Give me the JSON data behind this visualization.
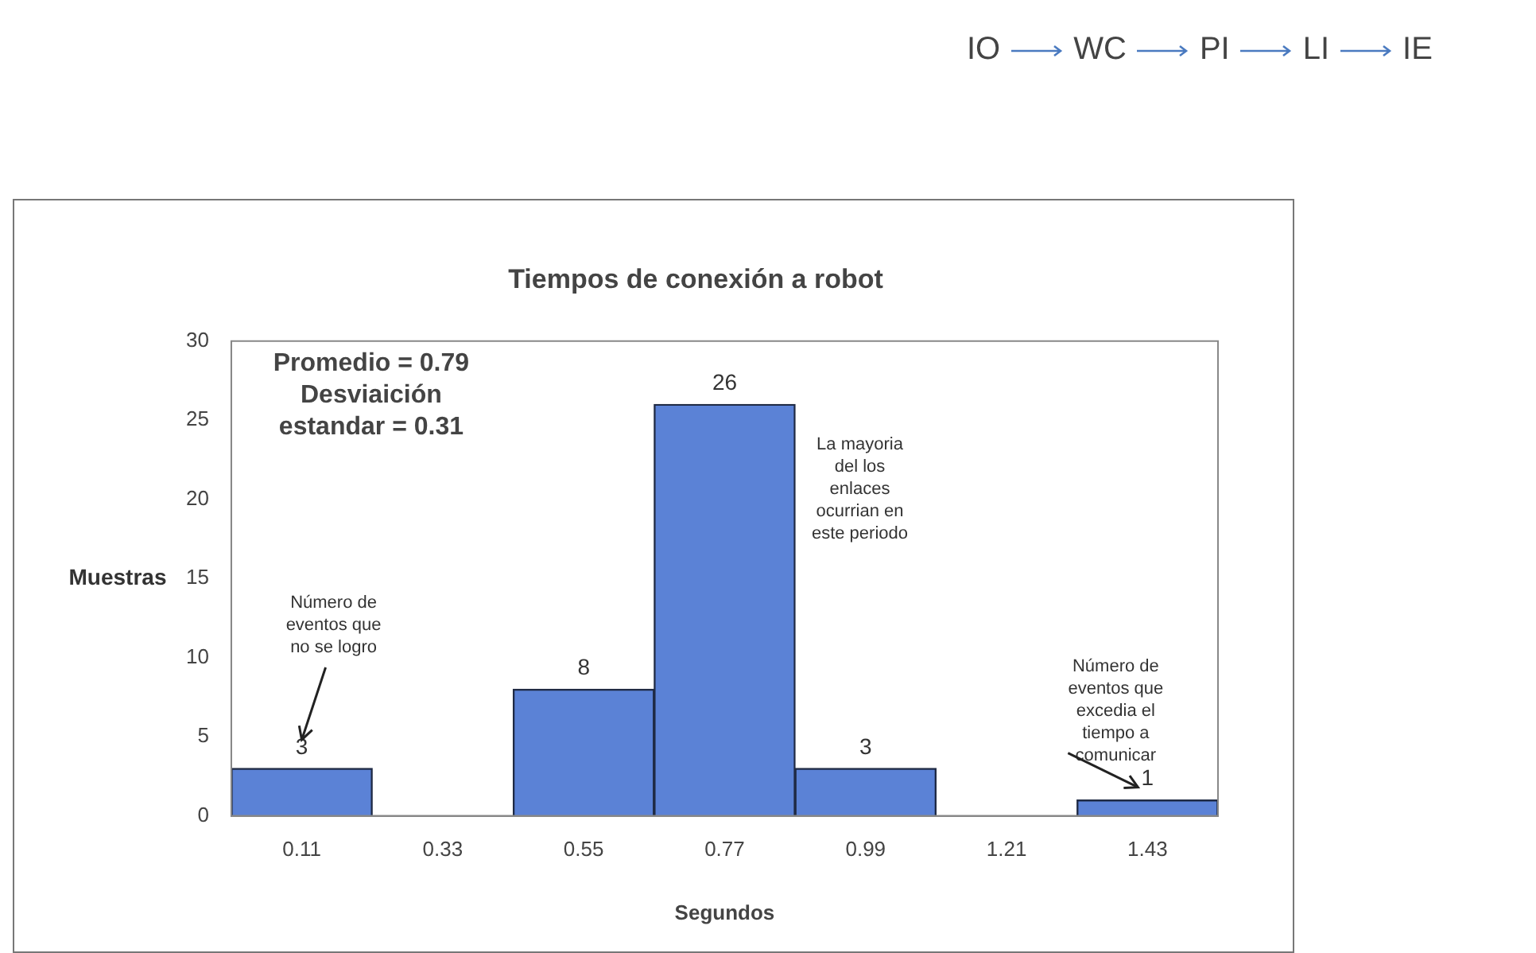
{
  "chart_data": {
    "type": "bar",
    "title": "Tiempos de conexión a robot",
    "xlabel": "Segundos",
    "ylabel": "Muestras",
    "categories": [
      "0.11",
      "0.33",
      "0.55",
      "0.77",
      "0.99",
      "1.21",
      "1.43"
    ],
    "values": [
      3,
      0,
      8,
      26,
      3,
      0,
      1
    ],
    "color": "#5b82d6",
    "value_labels": [
      "3",
      null,
      "8",
      "26",
      "3",
      null,
      "1"
    ],
    "ylim": [
      0,
      30
    ],
    "yticks": [
      0,
      5,
      10,
      15,
      20,
      25,
      30
    ],
    "grid": false,
    "legend": false,
    "annotations": [
      "IO",
      "WC",
      "PI",
      "LI",
      "IE",
      "Promedio = 0.79",
      "Desviaición estandar = 0.31",
      "Número de eventos que no se logro",
      "La mayoria del los enlaces ocurrian en este periodo",
      {
        "text": "Número de eventos que excedia el tiempo a comunicar",
        "x": "1.43",
        "y": 1
      }
    ]
  }
}
